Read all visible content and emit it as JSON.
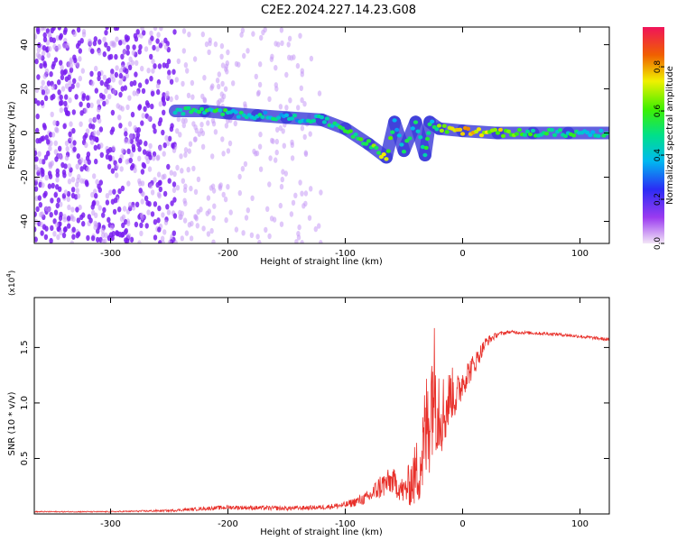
{
  "title": "C2E2.2024.227.14.23.G08",
  "colors": {
    "signal": "#e8302a",
    "axis": "#000000"
  },
  "chart_data": [
    {
      "type": "heatmap",
      "xlabel": "Height of straight line (km)",
      "ylabel": "Frequency (Hz)",
      "xlim": [
        -365,
        125
      ],
      "ylim": [
        -50,
        48
      ],
      "xticks": [
        -300,
        -200,
        -100,
        0,
        100
      ],
      "yticks": [
        -40,
        -20,
        0,
        20,
        40
      ],
      "colorbar": {
        "label": "Normalized spectral amplitude",
        "ticks": [
          "0.0",
          "0.2",
          "0.4",
          "0.6",
          "0.8"
        ],
        "range": [
          0,
          0.98
        ],
        "colormap": "rainbow"
      },
      "ridge": [
        {
          "x": -245,
          "y": 10,
          "amp": 0.45
        },
        {
          "x": -220,
          "y": 10,
          "amp": 0.5
        },
        {
          "x": -200,
          "y": 9,
          "amp": 0.5
        },
        {
          "x": -175,
          "y": 8,
          "amp": 0.45
        },
        {
          "x": -150,
          "y": 7,
          "amp": 0.4
        },
        {
          "x": -120,
          "y": 6,
          "amp": 0.45
        },
        {
          "x": -100,
          "y": 2,
          "amp": 0.5
        },
        {
          "x": -80,
          "y": -5,
          "amp": 0.55
        },
        {
          "x": -65,
          "y": -11,
          "amp": 0.7
        },
        {
          "x": -58,
          "y": 5,
          "amp": 0.4
        },
        {
          "x": -50,
          "y": -8,
          "amp": 0.5
        },
        {
          "x": -40,
          "y": 5,
          "amp": 0.45
        },
        {
          "x": -32,
          "y": -10,
          "amp": 0.5
        },
        {
          "x": -28,
          "y": 5,
          "amp": 0.45
        },
        {
          "x": -20,
          "y": 2,
          "amp": 0.6
        },
        {
          "x": 0,
          "y": 1,
          "amp": 0.85
        },
        {
          "x": 30,
          "y": 0,
          "amp": 0.7
        },
        {
          "x": 60,
          "y": 0,
          "amp": 0.55
        },
        {
          "x": 90,
          "y": 0,
          "amp": 0.5
        },
        {
          "x": 125,
          "y": 0,
          "amp": 0.45
        }
      ]
    },
    {
      "type": "line",
      "xlabel": "Height of straight line (km)",
      "ylabel": "SNR (10 * v/v)",
      "y_multiplier_label": "(x10",
      "y_multiplier_exp": "4",
      "y_multiplier_close": ")",
      "xlim": [
        -365,
        125
      ],
      "ylim": [
        0,
        1.95
      ],
      "xticks": [
        -300,
        -200,
        -100,
        0,
        100
      ],
      "yticks": [
        0.5,
        1.0,
        1.5
      ],
      "series": [
        {
          "x": [
            -365,
            -300,
            -250,
            -200,
            -150,
            -120,
            -100,
            -80,
            -70,
            -60,
            -50,
            -40,
            -35,
            -30,
            -25,
            -20,
            -15,
            -10,
            -5,
            0,
            10,
            20,
            30,
            40,
            60,
            80,
            100,
            125
          ],
          "y": [
            0.02,
            0.02,
            0.03,
            0.06,
            0.05,
            0.06,
            0.08,
            0.15,
            0.25,
            0.3,
            0.2,
            0.35,
            0.5,
            0.8,
            1.2,
            1.0,
            0.9,
            1.1,
            1.05,
            1.2,
            1.35,
            1.55,
            1.62,
            1.64,
            1.63,
            1.62,
            1.6,
            1.57
          ],
          "noise": [
            0.005,
            0.005,
            0.01,
            0.02,
            0.02,
            0.02,
            0.03,
            0.06,
            0.12,
            0.12,
            0.12,
            0.3,
            0.4,
            0.6,
            0.6,
            0.5,
            0.3,
            0.25,
            0.2,
            0.15,
            0.1,
            0.05,
            0.02,
            0.015,
            0.015,
            0.015,
            0.015,
            0.015
          ]
        }
      ]
    }
  ]
}
